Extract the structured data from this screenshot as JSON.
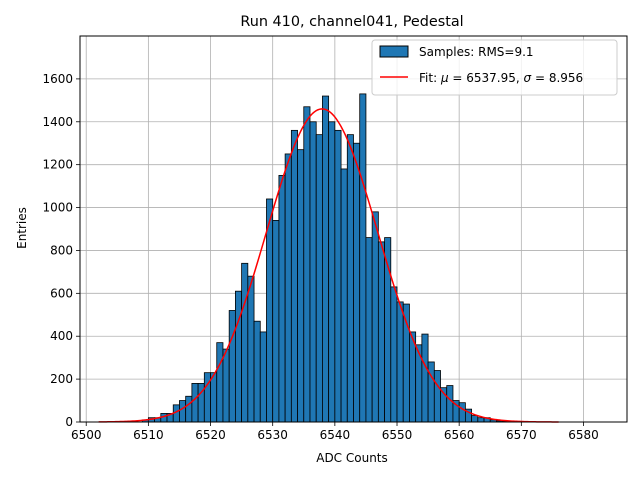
{
  "chart_data": {
    "type": "bar",
    "title": "Run 410, channel041, Pedestal",
    "xlabel": "ADC Counts",
    "ylabel": "Entries",
    "xlim": [
      6499,
      6587
    ],
    "ylim": [
      0,
      1800
    ],
    "xticks": [
      6500,
      6510,
      6520,
      6530,
      6540,
      6550,
      6560,
      6570,
      6580
    ],
    "yticks": [
      0,
      200,
      400,
      600,
      800,
      1000,
      1200,
      1400,
      1600
    ],
    "grid": true,
    "legend_position": "top-right",
    "bar_color": "#1f77b4",
    "fit_color": "#ff0000",
    "histogram": {
      "name": "Samples: RMS=9.1",
      "bin_width": 1,
      "bins": [
        {
          "x": 6509,
          "y": 10
        },
        {
          "x": 6510,
          "y": 20
        },
        {
          "x": 6511,
          "y": 20
        },
        {
          "x": 6512,
          "y": 40
        },
        {
          "x": 6513,
          "y": 40
        },
        {
          "x": 6514,
          "y": 80
        },
        {
          "x": 6515,
          "y": 100
        },
        {
          "x": 6516,
          "y": 120
        },
        {
          "x": 6517,
          "y": 180
        },
        {
          "x": 6518,
          "y": 180
        },
        {
          "x": 6519,
          "y": 230
        },
        {
          "x": 6520,
          "y": 230
        },
        {
          "x": 6521,
          "y": 370
        },
        {
          "x": 6522,
          "y": 340
        },
        {
          "x": 6523,
          "y": 520
        },
        {
          "x": 6524,
          "y": 610
        },
        {
          "x": 6525,
          "y": 740
        },
        {
          "x": 6526,
          "y": 680
        },
        {
          "x": 6527,
          "y": 470
        },
        {
          "x": 6528,
          "y": 420
        },
        {
          "x": 6529,
          "y": 1040
        },
        {
          "x": 6530,
          "y": 940
        },
        {
          "x": 6531,
          "y": 1150
        },
        {
          "x": 6532,
          "y": 1250
        },
        {
          "x": 6533,
          "y": 1360
        },
        {
          "x": 6534,
          "y": 1270
        },
        {
          "x": 6535,
          "y": 1470
        },
        {
          "x": 6536,
          "y": 1400
        },
        {
          "x": 6537,
          "y": 1340
        },
        {
          "x": 6538,
          "y": 1520
        },
        {
          "x": 6539,
          "y": 1400
        },
        {
          "x": 6540,
          "y": 1360
        },
        {
          "x": 6541,
          "y": 1180
        },
        {
          "x": 6542,
          "y": 1340
        },
        {
          "x": 6543,
          "y": 1300
        },
        {
          "x": 6544,
          "y": 1530
        },
        {
          "x": 6545,
          "y": 860
        },
        {
          "x": 6546,
          "y": 980
        },
        {
          "x": 6547,
          "y": 840
        },
        {
          "x": 6548,
          "y": 860
        },
        {
          "x": 6549,
          "y": 630
        },
        {
          "x": 6550,
          "y": 560
        },
        {
          "x": 6551,
          "y": 550
        },
        {
          "x": 6552,
          "y": 420
        },
        {
          "x": 6553,
          "y": 360
        },
        {
          "x": 6554,
          "y": 410
        },
        {
          "x": 6555,
          "y": 280
        },
        {
          "x": 6556,
          "y": 240
        },
        {
          "x": 6557,
          "y": 160
        },
        {
          "x": 6558,
          "y": 170
        },
        {
          "x": 6559,
          "y": 100
        },
        {
          "x": 6560,
          "y": 90
        },
        {
          "x": 6561,
          "y": 60
        },
        {
          "x": 6562,
          "y": 30
        },
        {
          "x": 6563,
          "y": 20
        },
        {
          "x": 6564,
          "y": 20
        },
        {
          "x": 6565,
          "y": 10
        },
        {
          "x": 6566,
          "y": 5
        },
        {
          "x": 6567,
          "y": 3
        }
      ]
    },
    "fit": {
      "name": "Fit: μ = 6537.95, σ = 8.956",
      "legend_label_prefix": "Fit: ",
      "mu_symbol": "μ",
      "mu_value": "6537.95",
      "sigma_symbol": "σ",
      "sigma_value": "8.956",
      "type": "gaussian",
      "mu": 6537.95,
      "sigma": 8.956,
      "amplitude": 1460,
      "x_range": [
        6502,
        6576
      ]
    }
  }
}
